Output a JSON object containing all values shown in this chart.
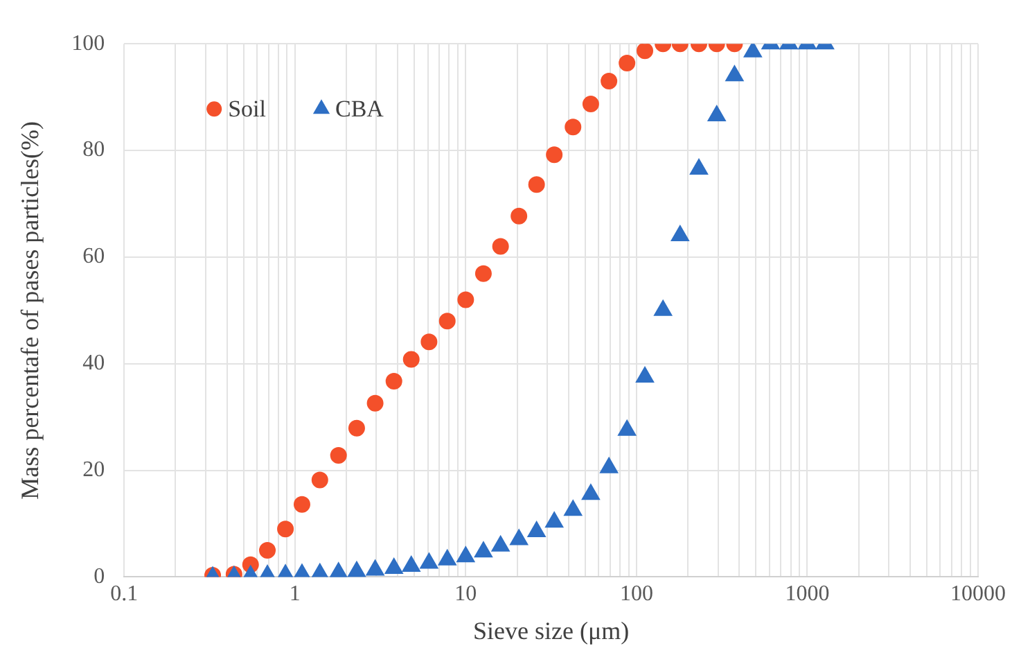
{
  "chart_data": {
    "type": "scatter",
    "xlabel": "Sieve size (μm)",
    "ylabel": "Mass percentafe of pases particles(%)",
    "log": "x",
    "grid": true,
    "legend": "top left",
    "xlim": [
      0.1,
      10000
    ],
    "ylim": [
      0,
      100
    ],
    "yticks": [
      0,
      20,
      40,
      60,
      80,
      100
    ],
    "xticks": [
      0.1,
      {
        "value": 0.2,
        "label": null
      },
      {
        "value": 0.3,
        "label": null
      },
      {
        "value": 0.4,
        "label": null
      },
      {
        "value": 0.5,
        "label": null
      },
      {
        "value": 0.6,
        "label": null
      },
      {
        "value": 0.7,
        "label": null
      },
      {
        "value": 0.8,
        "label": null
      },
      {
        "value": 0.9,
        "label": null
      },
      1,
      {
        "value": 2,
        "label": null
      },
      {
        "value": 3,
        "label": null
      },
      {
        "value": 4,
        "label": null
      },
      {
        "value": 5,
        "label": null
      },
      {
        "value": 6,
        "label": null
      },
      {
        "value": 7,
        "label": null
      },
      {
        "value": 8,
        "label": null
      },
      {
        "value": 9,
        "label": null
      },
      10,
      {
        "value": 20,
        "label": null
      },
      {
        "value": 30,
        "label": null
      },
      {
        "value": 40,
        "label": null
      },
      {
        "value": 50,
        "label": null
      },
      {
        "value": 60,
        "label": null
      },
      {
        "value": 70,
        "label": null
      },
      {
        "value": 80,
        "label": null
      },
      {
        "value": 90,
        "label": null
      },
      100,
      {
        "value": 200,
        "label": null
      },
      {
        "value": 300,
        "label": null
      },
      {
        "value": 400,
        "label": null
      },
      {
        "value": 500,
        "label": null
      },
      {
        "value": 600,
        "label": null
      },
      {
        "value": 700,
        "label": null
      },
      {
        "value": 800,
        "label": null
      },
      {
        "value": 900,
        "label": null
      },
      1000,
      {
        "value": 2000,
        "label": null
      },
      {
        "value": 3000,
        "label": null
      },
      {
        "value": 4000,
        "label": null
      },
      {
        "value": 5000,
        "label": null
      },
      {
        "value": 6000,
        "label": null
      },
      {
        "value": 7000,
        "label": null
      },
      {
        "value": 8000,
        "label": null
      },
      {
        "value": 9000,
        "label": null
      },
      10000
    ],
    "series": [
      {
        "name": "Soil",
        "color": "#f4502a",
        "marker": "circle",
        "x": [
          0.33,
          0.44,
          0.55,
          0.69,
          0.88,
          1.1,
          1.4,
          1.8,
          2.3,
          2.95,
          3.8,
          4.8,
          6.1,
          7.8,
          10,
          12.7,
          16,
          20.5,
          26,
          33,
          42.5,
          54,
          69,
          88,
          112,
          143,
          180,
          232,
          295,
          375
        ],
        "values": [
          0.3,
          0.5,
          2.3,
          5,
          9,
          13.6,
          18.2,
          22.8,
          27.9,
          32.6,
          36.7,
          40.8,
          44.1,
          48,
          52,
          56.9,
          62,
          67.7,
          73.6,
          79.2,
          84.4,
          88.7,
          93,
          96.4,
          98.7,
          100,
          100,
          100,
          100,
          100
        ]
      },
      {
        "name": "CBA",
        "color": "#2e6fc4",
        "marker": "triangle",
        "x": [
          0.33,
          0.44,
          0.55,
          0.69,
          0.88,
          1.1,
          1.4,
          1.8,
          2.3,
          2.95,
          3.8,
          4.8,
          6.1,
          7.8,
          10,
          12.7,
          16,
          20.5,
          26,
          33,
          42.5,
          54,
          69,
          88,
          112,
          143,
          180,
          232,
          295,
          375,
          480,
          610,
          780,
          1000,
          1270
        ],
        "values": [
          0,
          0.1,
          0.2,
          0.3,
          0.4,
          0.5,
          0.6,
          0.8,
          1,
          1.3,
          1.6,
          2,
          2.6,
          3.2,
          3.8,
          4.7,
          5.8,
          7,
          8.5,
          10.3,
          12.5,
          15.5,
          20.5,
          27.5,
          37.5,
          50,
          64,
          76.5,
          86.5,
          94,
          98.5,
          100,
          100,
          100,
          100
        ]
      }
    ]
  }
}
